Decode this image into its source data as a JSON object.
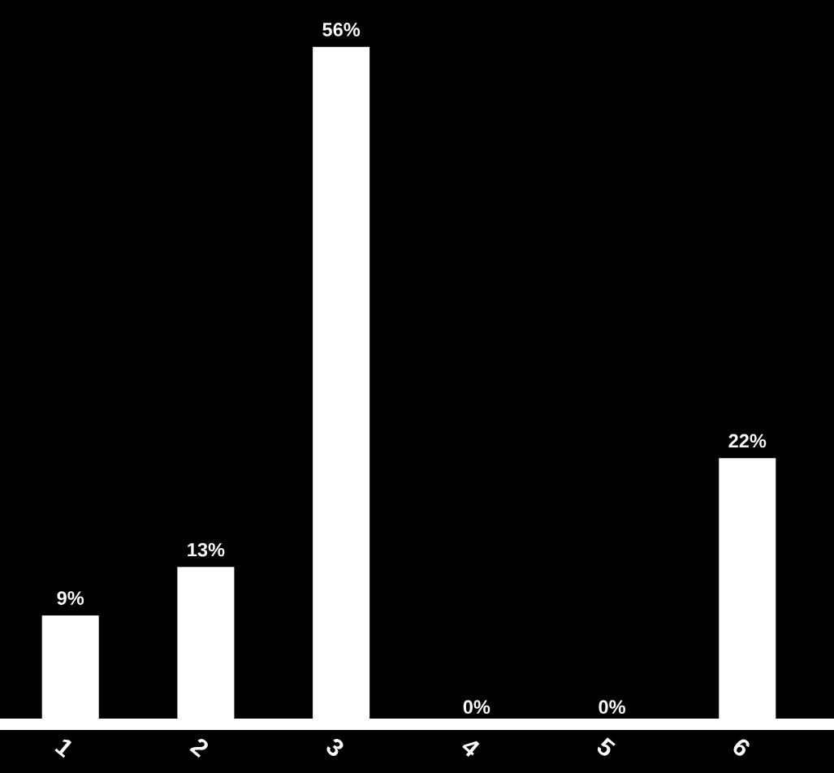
{
  "chart_data": {
    "type": "bar",
    "categories": [
      "1",
      "2",
      "3",
      "4",
      "5",
      "6"
    ],
    "values": [
      9,
      13,
      56,
      0,
      0,
      22
    ],
    "value_labels": [
      "9%",
      "13%",
      "56%",
      "0%",
      "0%",
      "22%"
    ],
    "color": "#ffffff",
    "grid": false,
    "legend": false
  }
}
